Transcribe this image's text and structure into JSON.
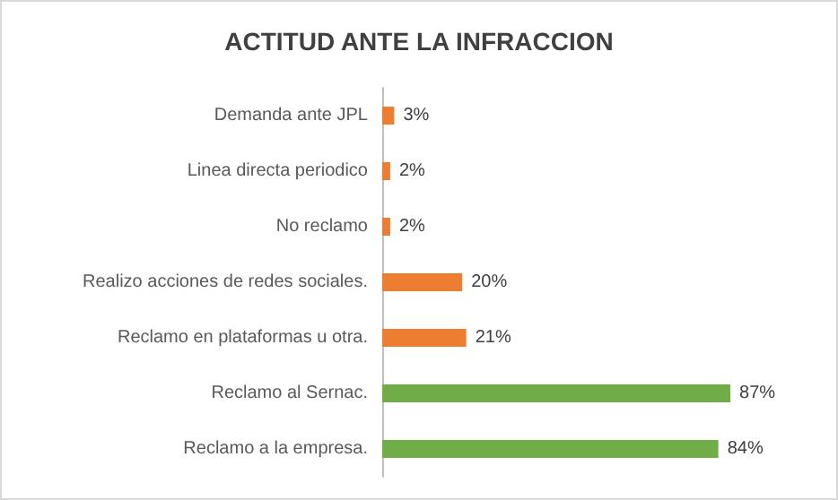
{
  "chart_data": {
    "type": "bar",
    "orientation": "horizontal",
    "title": "ACTITUD ANTE LA INFRACCION",
    "categories": [
      "Demanda ante JPL",
      "Linea directa periodico",
      "No reclamo",
      "Realizo acciones de redes sociales.",
      "Reclamo en plataformas u otra.",
      "Reclamo al Sernac.",
      "Reclamo a la empresa."
    ],
    "values": [
      3,
      2,
      2,
      20,
      21,
      87,
      84
    ],
    "colors": [
      "#ed7d31",
      "#ed7d31",
      "#ed7d31",
      "#ed7d31",
      "#ed7d31",
      "#70ad47",
      "#70ad47"
    ],
    "value_labels": [
      "3%",
      "2%",
      "2%",
      "20%",
      "21%",
      "87%",
      "84%"
    ]
  }
}
